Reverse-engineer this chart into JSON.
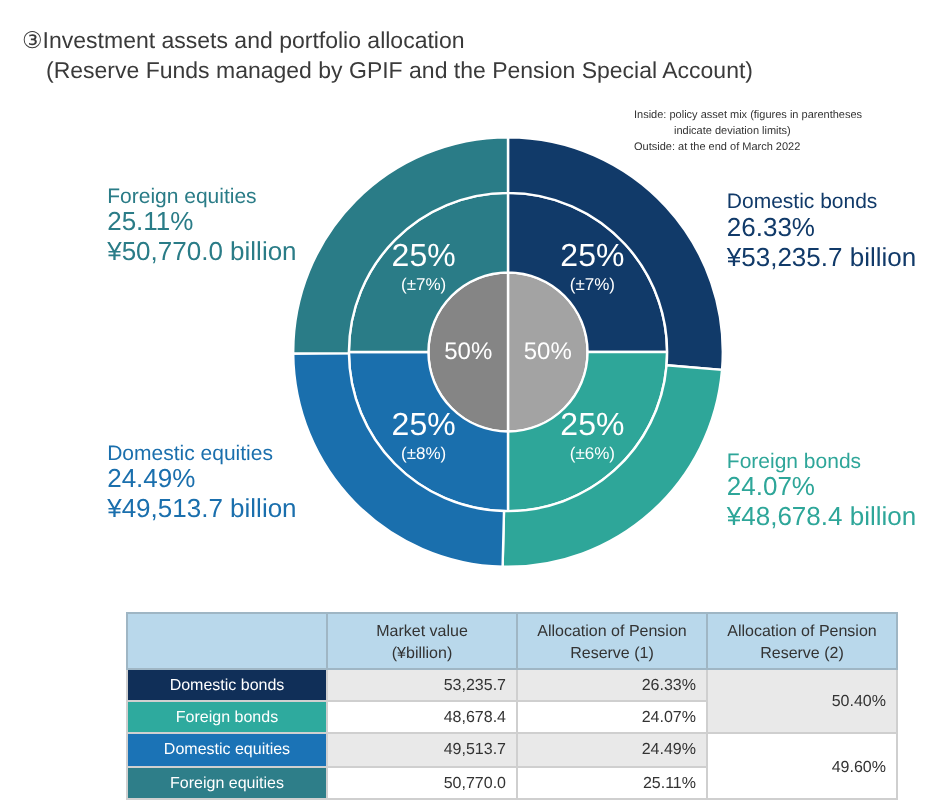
{
  "chart_data": [
    {
      "type": "donut",
      "title": "③Investment assets and portfolio allocation",
      "subtitle": "(Reserve Funds managed by GPIF and the Pension Special Account)",
      "annotations": [
        "Inside: policy asset mix (figures in parentheses indicate deviation limits)",
        "Outside: at the end of March 2022"
      ],
      "categories": [
        "Domestic bonds",
        "Foreign bonds",
        "Domestic equities",
        "Foreign equities"
      ],
      "series": [
        {
          "values": [
            26.33,
            24.07,
            24.49,
            25.11
          ],
          "colors": [
            "#113a69",
            "#2ea699",
            "#1a6fad",
            "#2a7c87"
          ],
          "value_labels": [
            "26.33%\n¥53,235.7 billion",
            "24.07%\n¥48,678.4 billion",
            "24.49%\n¥49,513.7 billion",
            "25.11%\n¥50,770.0 billion"
          ]
        },
        {
          "values": [
            25,
            25,
            25,
            25
          ],
          "colors": [
            "#113a69",
            "#2ea699",
            "#1a6fad",
            "#2a7c87"
          ],
          "value_labels": [
            "25%\n(±7%)",
            "25%\n(±6%)",
            "25%\n(±8%)",
            "25%\n(±7%)"
          ]
        },
        {
          "values": [
            50,
            null,
            50,
            null
          ],
          "colors": [
            "#a3a3a3",
            null,
            "#858585",
            null
          ],
          "value_labels": [
            "50%",
            null,
            "50%",
            null
          ]
        }
      ]
    },
    {
      "type": "other",
      "categories": [
        "Domestic bonds",
        "Foreign bonds",
        "Domestic equities",
        "Foreign equities"
      ],
      "colors": [
        "#102f58",
        "#2eaa9e",
        "#1b73b6",
        "#2e7e89"
      ],
      "series": [
        {
          "name": "Market value (¥billion)",
          "values": [
            53235.7,
            48678.4,
            49513.7,
            50770.0
          ],
          "colors": [
            "#e9e9e9",
            "#ffffff",
            "#e9e9e9",
            "#ffffff"
          ],
          "value_labels": [
            "53,235.7",
            "48,678.4",
            "49,513.7",
            "50,770.0"
          ]
        },
        {
          "name": "Allocation of Pension Reserve (1)",
          "values": [
            26.33,
            24.07,
            24.49,
            25.11
          ],
          "colors": [
            "#e9e9e9",
            "#ffffff",
            "#e9e9e9",
            "#ffffff"
          ],
          "value_labels": [
            "26.33%",
            "24.07%",
            "24.49%",
            "25.11%"
          ]
        },
        {
          "name": "Allocation of Pension Reserve (2)",
          "values": [
            50.4,
            null,
            49.6,
            null
          ],
          "colors": [
            "#e9e9e9",
            null,
            "#ffffff",
            null
          ],
          "value_labels": [
            "50.40%",
            null,
            "49.60%",
            null
          ]
        }
      ]
    }
  ]
}
